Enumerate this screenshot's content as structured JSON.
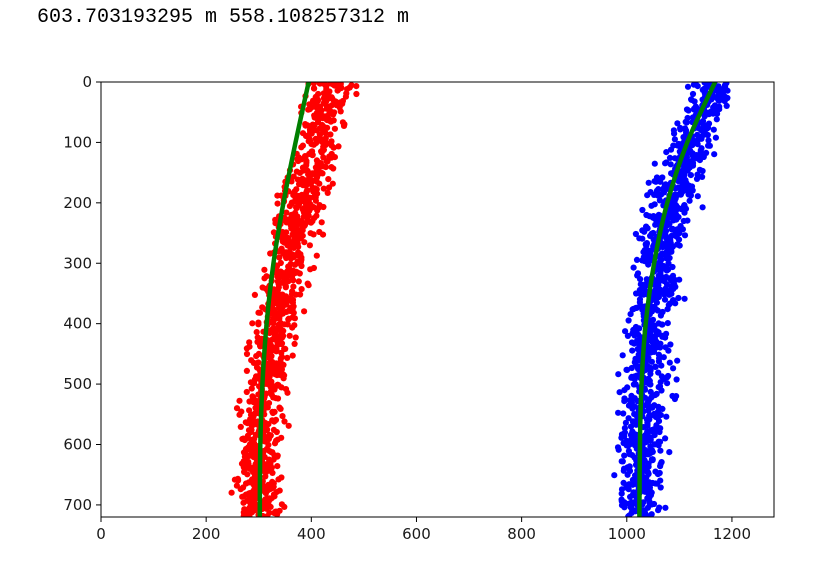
{
  "output": {
    "text": "603.703193295 m 558.108257312 m"
  },
  "chart_data": {
    "type": "scatter",
    "title": "",
    "xlabel": "",
    "ylabel": "",
    "xlim": [
      0,
      1280
    ],
    "ylim": [
      720,
      0
    ],
    "y_inverted": true,
    "grid": false,
    "xticks": [
      0,
      200,
      400,
      600,
      800,
      1000,
      1200
    ],
    "yticks": [
      0,
      100,
      200,
      300,
      400,
      500,
      600,
      700
    ],
    "series": [
      {
        "kind": "scatter",
        "color": "#ff0000",
        "band_center_x": [
          440,
          410,
          380,
          355,
          330,
          315,
          305,
          300
        ],
        "band_center_y": [
          0,
          100,
          200,
          300,
          400,
          500,
          600,
          720
        ],
        "band_halfwidth": 45,
        "approx_points": 1100
      },
      {
        "kind": "scatter",
        "color": "#0000ff",
        "band_center_x": [
          1170,
          1120,
          1085,
          1060,
          1045,
          1035,
          1030,
          1025
        ],
        "band_center_y": [
          0,
          100,
          200,
          300,
          400,
          500,
          600,
          720
        ],
        "band_halfwidth": 45,
        "approx_points": 1100
      },
      {
        "kind": "line",
        "color": "#007f00",
        "x": [
          395,
          370,
          347,
          328,
          315,
          307,
          303,
          302
        ],
        "y": [
          0,
          100,
          200,
          300,
          400,
          500,
          600,
          720
        ]
      },
      {
        "kind": "line",
        "color": "#007f00",
        "x": [
          1168,
          1115,
          1077,
          1052,
          1036,
          1028,
          1025,
          1024
        ],
        "y": [
          0,
          100,
          200,
          300,
          400,
          500,
          600,
          720
        ]
      }
    ]
  }
}
